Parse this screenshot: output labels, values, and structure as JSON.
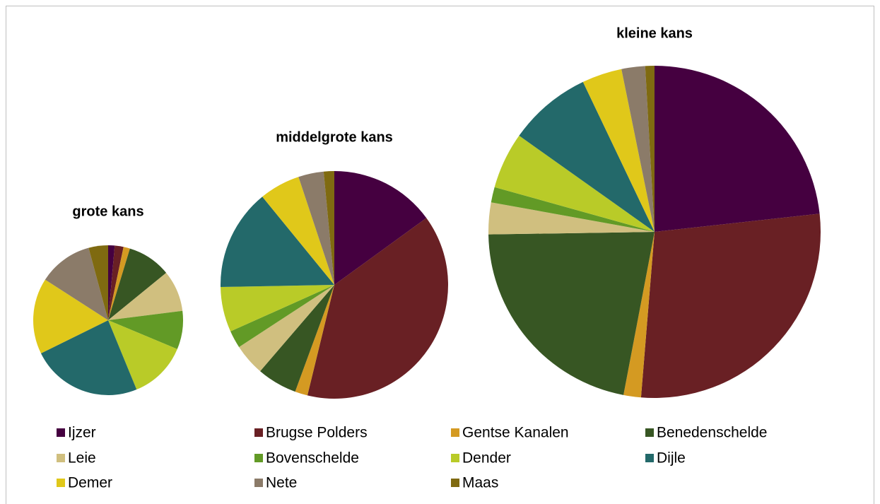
{
  "chart_data": [
    {
      "type": "pie",
      "title": "grote kans",
      "categories": [
        "Ijzer",
        "Brugse Polders",
        "Gentse Kanalen",
        "Benedenschelde",
        "Leie",
        "Bovenschelde",
        "Dender",
        "Dijle",
        "Demer",
        "Nete",
        "Maas"
      ],
      "colors": [
        "#450040",
        "#692024",
        "#d49a22",
        "#375623",
        "#d0bf7f",
        "#629a26",
        "#b9cb28",
        "#23696a",
        "#e0c81a",
        "#8b7b69",
        "#7f6a10"
      ],
      "values": [
        1.4,
        1.9,
        1.4,
        9.4,
        8.9,
        8.3,
        12.5,
        23.9,
        16.4,
        11.7,
        4.2
      ]
    },
    {
      "type": "pie",
      "title": "middelgrote kans",
      "categories": [
        "Ijzer",
        "Brugse Polders",
        "Gentse Kanalen",
        "Benedenschelde",
        "Leie",
        "Bovenschelde",
        "Dender",
        "Dijle",
        "Demer",
        "Nete",
        "Maas"
      ],
      "colors": [
        "#450040",
        "#692024",
        "#d49a22",
        "#375623",
        "#d0bf7f",
        "#629a26",
        "#b9cb28",
        "#23696a",
        "#e0c81a",
        "#8b7b69",
        "#7f6a10"
      ],
      "values": [
        15,
        38.8,
        1.8,
        5.7,
        4.5,
        2.5,
        6.4,
        14.4,
        5.8,
        3.6,
        1.5
      ]
    },
    {
      "type": "pie",
      "title": "kleine kans",
      "categories": [
        "Ijzer",
        "Brugse Polders",
        "Gentse Kanalen",
        "Benedenschelde",
        "Leie",
        "Bovenschelde",
        "Dender",
        "Dijle",
        "Demer",
        "Nete",
        "Maas"
      ],
      "colors": [
        "#450040",
        "#692024",
        "#d49a22",
        "#375623",
        "#d0bf7f",
        "#629a26",
        "#b9cb28",
        "#23696a",
        "#e0c81a",
        "#8b7b69",
        "#7f6a10"
      ],
      "values": [
        23.3,
        28.1,
        1.7,
        21.8,
        3.1,
        1.5,
        5.5,
        8.1,
        3.9,
        2.3,
        0.9
      ]
    }
  ]
}
